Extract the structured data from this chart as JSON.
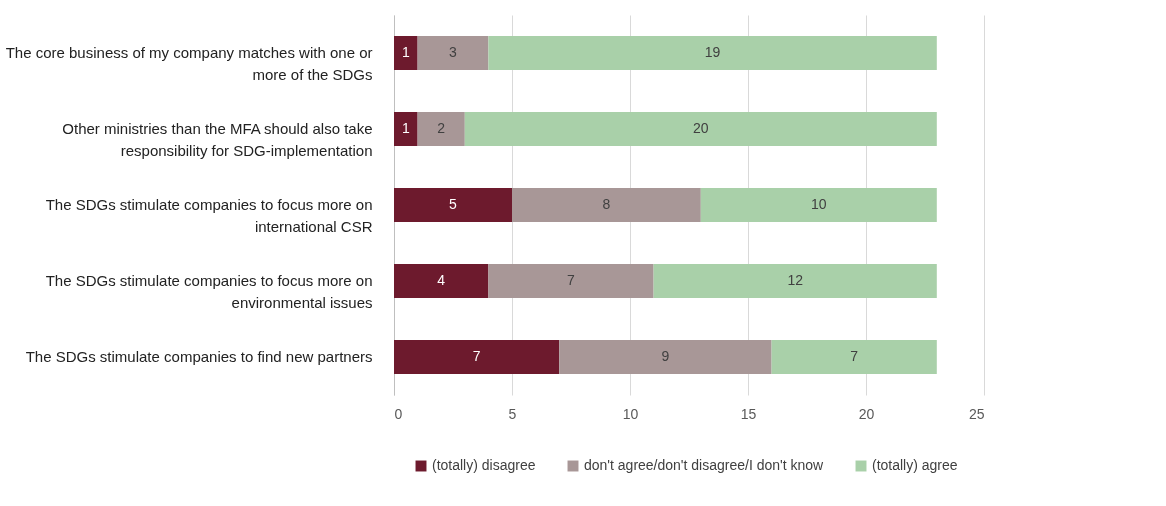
{
  "chart_data": {
    "type": "bar",
    "orientation": "horizontal",
    "stacked": true,
    "data_labels": true,
    "grid": "x",
    "legend": "bottom",
    "categories": [
      "The core business of my company matches with one or more of the SDGs",
      "Other ministries than the MFA should also take responsibility for SDG-implementation",
      "The SDGs stimulate companies to focus more on international CSR",
      "The SDGs stimulate companies to focus more on environmental issues",
      "The SDGs stimulate companies to find new partners"
    ],
    "series": [
      {
        "name": "(totally) disagree",
        "color": "#6d1a2d",
        "values": [
          1,
          1,
          5,
          4,
          7
        ]
      },
      {
        "name": "don't agree/don't disagree/I don't know",
        "color": "#a89797",
        "values": [
          3,
          2,
          8,
          7,
          9
        ]
      },
      {
        "name": "(totally) agree",
        "color": "#a9d0a9",
        "values": [
          19,
          20,
          10,
          12,
          7
        ]
      }
    ],
    "xlim": [
      0,
      25
    ],
    "xticks": [
      0,
      5,
      10,
      15,
      20,
      25
    ]
  }
}
